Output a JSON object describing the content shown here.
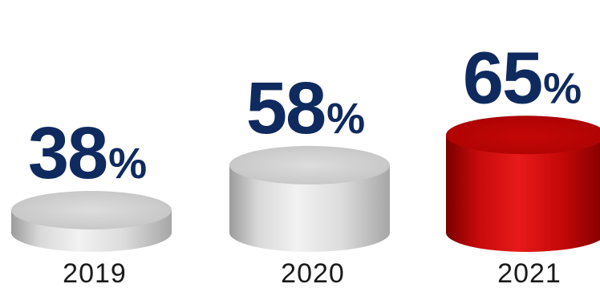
{
  "chart_data": {
    "type": "bar",
    "categories": [
      "2019",
      "2020",
      "2021"
    ],
    "values": [
      38,
      58,
      65
    ],
    "value_labels": [
      "38",
      "58",
      "65"
    ],
    "value_suffix": "%",
    "ylim": [
      0,
      100
    ],
    "grid": false,
    "legend": "none",
    "highlight_index": 2
  },
  "colors": {
    "value_text": "#0f2a5e",
    "year_text": "#1a1a1a",
    "bar_default": "#d6d6d6",
    "bar_highlight": "#c40a0a"
  }
}
